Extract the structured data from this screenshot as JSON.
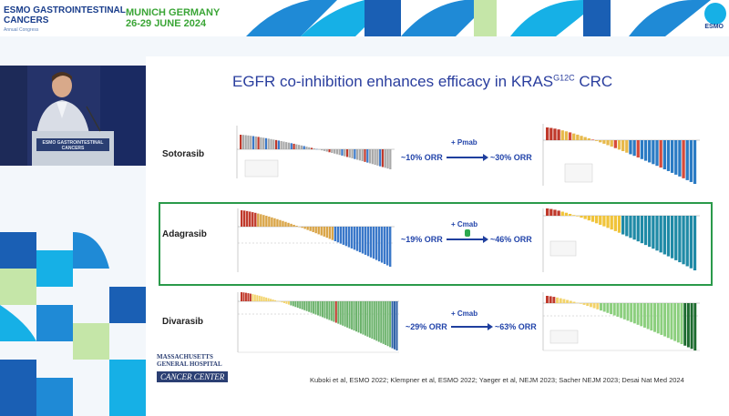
{
  "header": {
    "congress_line1": "ESMO GASTROINTESTINAL",
    "congress_line2": "CANCERS",
    "congress_sub": "Annual Congress",
    "location": "MUNICH GERMANY",
    "dates": "26-29 JUNE 2024",
    "brand": "ESMO"
  },
  "video": {
    "podium_text": "ESMO GASTROINTESTINAL CANCERS"
  },
  "institution": {
    "line1": "MASSACHUSETTS",
    "line2": "GENERAL HOSPITAL",
    "line3": "CANCER CENTER"
  },
  "slide": {
    "title_main": "EGFR co-inhibition enhances efficacy in KRAS",
    "title_sup": "G12C",
    "title_end": " CRC",
    "rows": [
      {
        "drug": "Sotorasib",
        "orr_mono": "~10% ORR",
        "combo": "+ Pmab",
        "orr_combo": "~30% ORR"
      },
      {
        "drug": "Adagrasib",
        "orr_mono": "~19% ORR",
        "combo": "+ Cmab",
        "orr_combo": "~46% ORR"
      },
      {
        "drug": "Divarasib",
        "orr_mono": "~29% ORR",
        "combo": "+ Cmab",
        "orr_combo": "~63% ORR"
      }
    ],
    "references": "Kuboki et al, ESMO 2022; Klempner et al, ESMO 2022; Yaeger et al, NEJM 2023; Sacher NEJM 2023; Desai Nat Med 2024"
  },
  "colors": {
    "title": "#2a3e9e",
    "highlight": "#2a9a4a",
    "accent_blue": "#1a3e8c",
    "accent_green": "#3aa536"
  }
}
